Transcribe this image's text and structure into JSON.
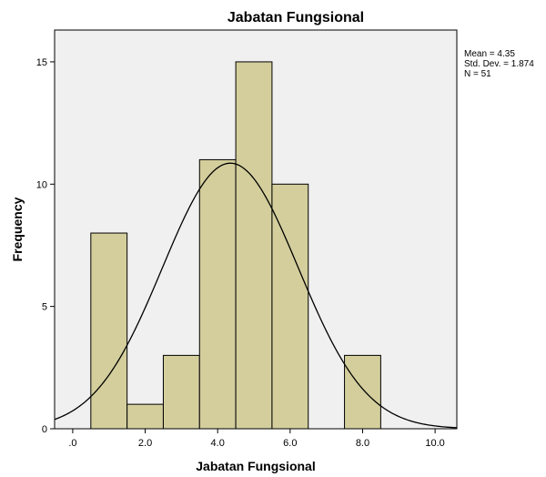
{
  "chart_data": {
    "type": "bar",
    "title": "Jabatan Fungsional",
    "xlabel": "Jabatan Fungsional",
    "ylabel": "Frequency",
    "bins": [
      {
        "x0": 0.5,
        "x1": 1.5,
        "count": 8
      },
      {
        "x0": 1.5,
        "x1": 2.5,
        "count": 1
      },
      {
        "x0": 2.5,
        "x1": 3.5,
        "count": 3
      },
      {
        "x0": 3.5,
        "x1": 4.5,
        "count": 11
      },
      {
        "x0": 4.5,
        "x1": 5.5,
        "count": 15
      },
      {
        "x0": 5.5,
        "x1": 6.5,
        "count": 10
      },
      {
        "x0": 7.5,
        "x1": 8.5,
        "count": 3
      }
    ],
    "xlim": [
      -0.5,
      10.6
    ],
    "ylim": [
      0,
      16.3
    ],
    "x_ticks": [
      0,
      2,
      4,
      6,
      8,
      10
    ],
    "x_tick_labels": [
      ".0",
      "2.0",
      "4.0",
      "6.0",
      "8.0",
      "10.0"
    ],
    "y_ticks": [
      0,
      5,
      10,
      15
    ],
    "y_tick_labels": [
      "0",
      "5",
      "10",
      "15"
    ],
    "normal_curve": {
      "mean": 4.35,
      "std_dev": 1.874,
      "n": 51,
      "bin_width": 1
    },
    "stats_text": [
      "Mean = 4.35",
      "Std. Dev. = 1.874",
      "N = 51"
    ],
    "grid": false,
    "colors": {
      "bar_fill": "#d3ce9c",
      "bar_stroke": "#000000",
      "plot_background": "#f0f0f0",
      "curve": "#000000"
    }
  }
}
